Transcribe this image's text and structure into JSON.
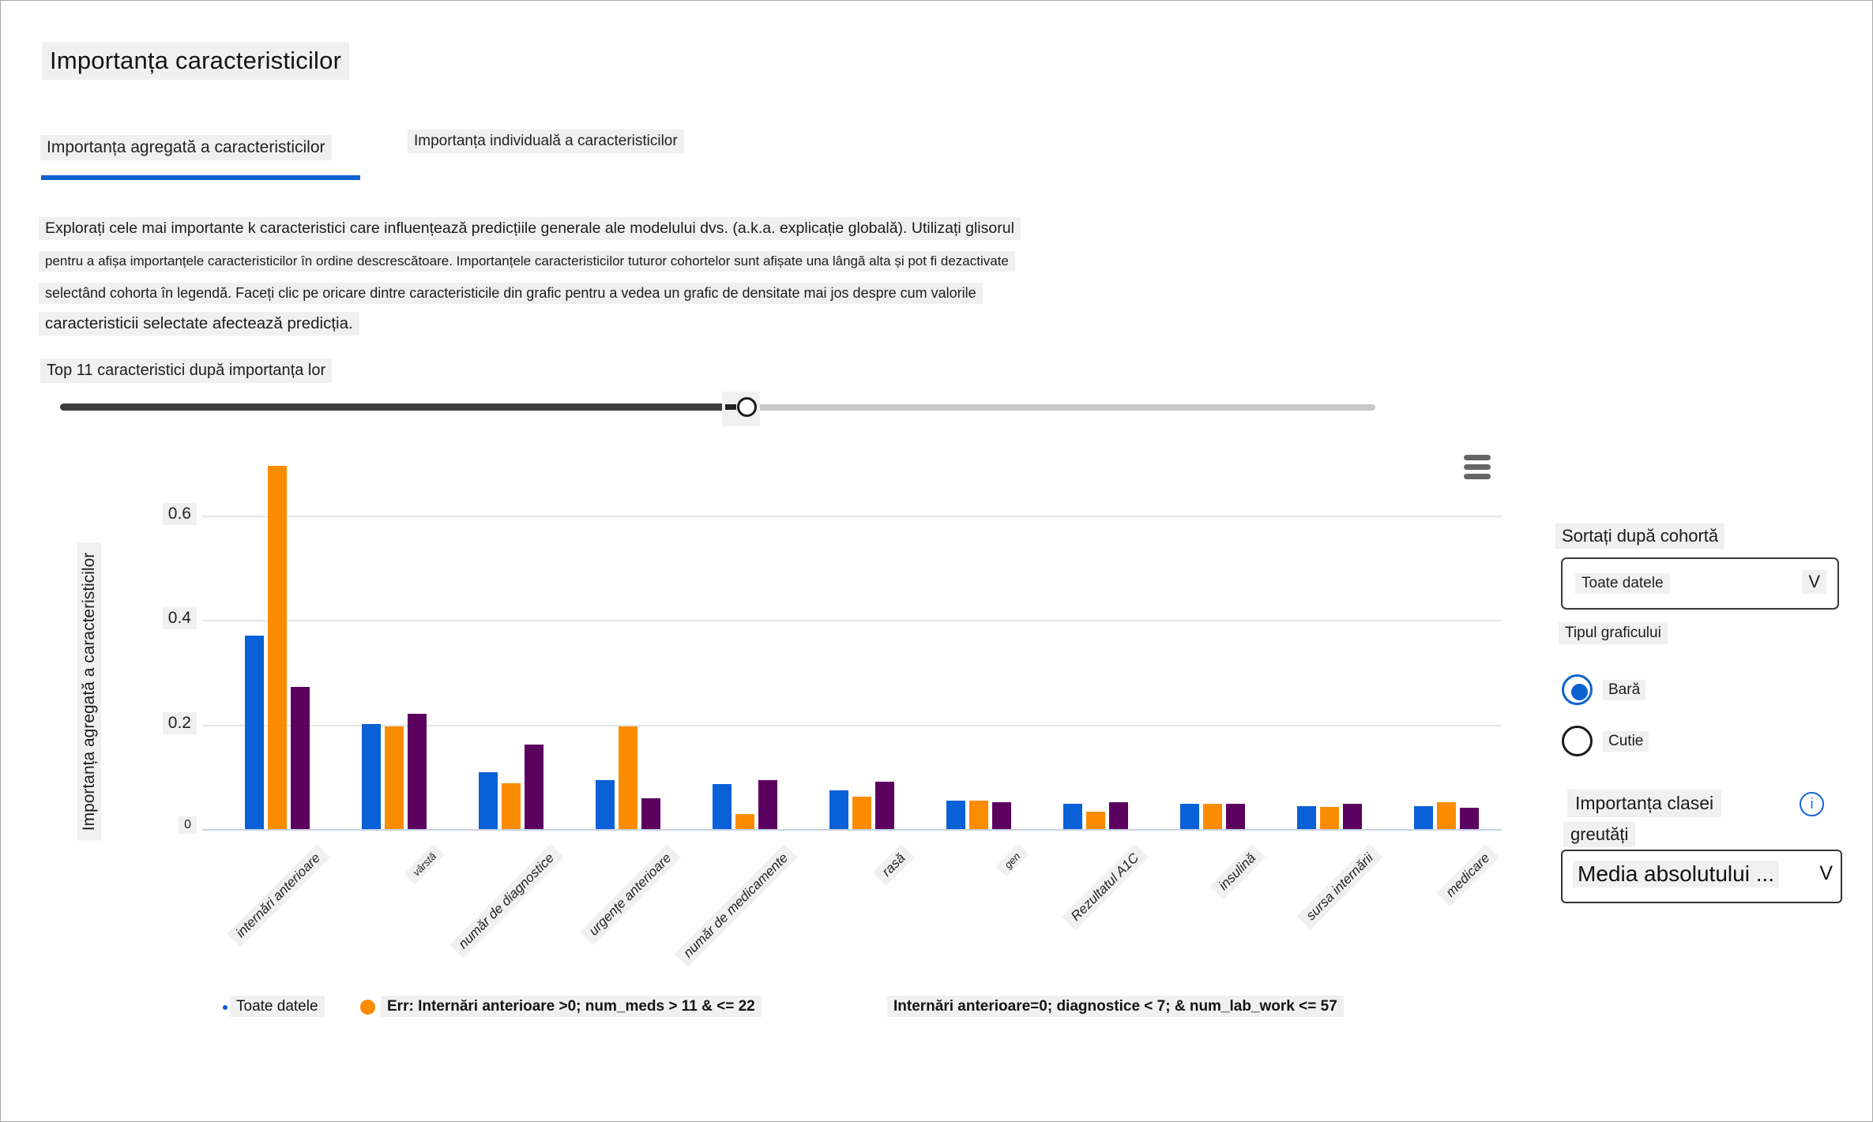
{
  "page": {
    "title": "Importanța caracteristicilor"
  },
  "tabs": [
    {
      "label": "Importanța agregată a caracteristicilor",
      "active": true
    },
    {
      "label": "Importanța individuală a caracteristicilor",
      "active": false
    }
  ],
  "description": {
    "line1": "Explorați cele mai importante k caracteristici care influențează predicțiile generale ale modelului dvs. (a.k.a. explicație globală). Utilizați glisorul",
    "line2": "pentru a afișa importanțele caracteristicilor în ordine descrescătoare. Importanțele caracteristicilor tuturor cohortelor sunt afișate una lângă alta și pot fi dezactivate",
    "line3": "selectând cohorta în legendă. Faceți clic pe oricare dintre caracteristicile din grafic pentru a vedea un grafic de densitate mai jos despre cum valorile",
    "line4": "caracteristicii selectate afectează predicția."
  },
  "top_k_label": "Top 11 caracteristici după importanța lor",
  "slider": {
    "fraction": 0.52
  },
  "chart_data": {
    "type": "bar",
    "title": "",
    "xlabel": "",
    "ylabel": "Importanța agregată a caracteristicilor",
    "ylim": [
      0,
      0.74
    ],
    "yticks": [
      0,
      0.2,
      0.4,
      0.6
    ],
    "grid": true,
    "legend_position": "bottom",
    "categories": [
      "internări anterioare",
      "vârstă",
      "număr de diagnostice",
      "urgențe anterioare",
      "număr de medicamente",
      "rasă",
      "gen",
      "Rezultatul A1C",
      "insulină",
      "sursa internării",
      "medicare"
    ],
    "small_tick_labels": [
      "vârstă",
      "gen"
    ],
    "series": [
      {
        "name": "Toate datele",
        "color": "#0a60d6",
        "values": [
          0.37,
          0.2,
          0.109,
          0.093,
          0.086,
          0.074,
          0.054,
          0.048,
          0.048,
          0.044,
          0.044
        ]
      },
      {
        "name": "Err: Internări anterioare >0; num_meds > 11 & <= 22",
        "color": "#fb8c00",
        "values": [
          0.695,
          0.196,
          0.087,
          0.196,
          0.028,
          0.062,
          0.054,
          0.033,
          0.048,
          0.042,
          0.051
        ]
      },
      {
        "name": "Internări anterioare=0; diagnostice < 7; & num_lab_work <= 57",
        "color": "#5c0060",
        "values": [
          0.272,
          0.22,
          0.162,
          0.059,
          0.093,
          0.09,
          0.051,
          0.051,
          0.049,
          0.049,
          0.04
        ]
      }
    ]
  },
  "legend": {
    "items": [
      {
        "label": "Toate datele",
        "marker": "small-dot",
        "color": "#0a60d6",
        "x": 281
      },
      {
        "label": "Err: Internări anterioare >0; num_meds > 11 & <= 22",
        "marker": "dot",
        "color": "#fb8c00",
        "x": 455
      },
      {
        "label": "Internări anterioare=0; diagnostice < 7; & num_lab_work <= 57",
        "marker": "none",
        "color": "#5c0060",
        "x": 1122
      }
    ]
  },
  "side_panel": {
    "sort_label": "Sortați după cohortă",
    "cohort_select": {
      "value": "Toate datele",
      "chevron": "V"
    },
    "chart_type_label": "Tipul graficului",
    "radio_options": [
      {
        "label": "Bară",
        "selected": true
      },
      {
        "label": "Cutie",
        "selected": false
      }
    ],
    "class_importance_label": "Importanța clasei",
    "weights_label": "greutăți",
    "info_icon_glyph": "i",
    "weights_select": {
      "value": "Media absolutului ...",
      "chevron": "V"
    }
  },
  "colors": {
    "accent_blue": "#0f62d2",
    "radio_blue": "#0b63ce",
    "info_blue": "#1565d6",
    "slider_dark": "#3d3d3d",
    "slider_light": "#c9c9c9",
    "gridline": "#e4e4e4",
    "axis_line": "#c9d2e4",
    "highlight_bg": "#f0f0f0"
  }
}
